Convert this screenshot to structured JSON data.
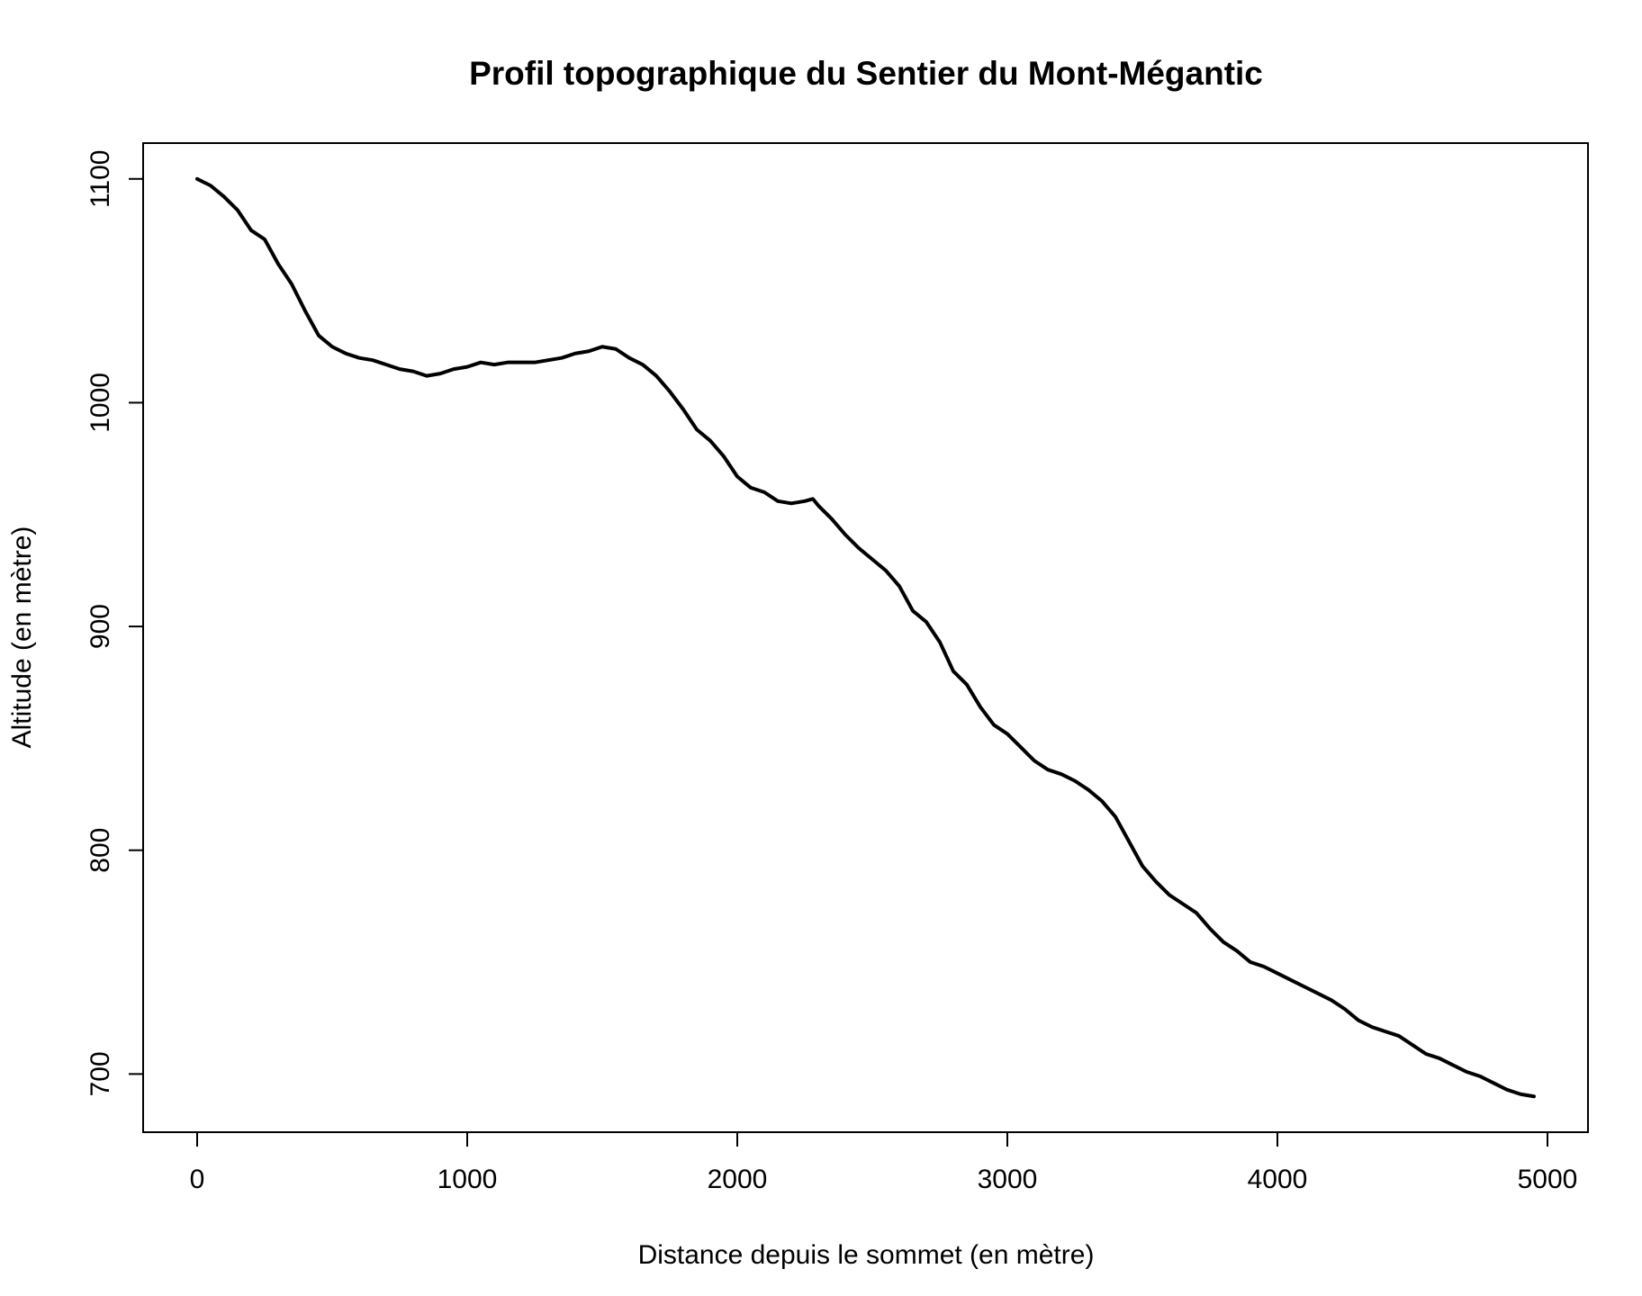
{
  "chart_data": {
    "type": "line",
    "title": "Profil topographique du Sentier du Mont-Mégantic",
    "xlabel": "Distance depuis le sommet (en mètre)",
    "ylabel": "Altitude (en mètre)",
    "xlim": [
      -200,
      5150
    ],
    "ylim": [
      674,
      1116
    ],
    "xticks": [
      0,
      1000,
      2000,
      3000,
      4000,
      5000
    ],
    "yticks": [
      700,
      800,
      900,
      1000,
      1100
    ],
    "grid": false,
    "line_color": "#000000",
    "series": [
      {
        "x": [
          0,
          50,
          100,
          150,
          200,
          250,
          300,
          350,
          400,
          450,
          500,
          550,
          600,
          650,
          700,
          750,
          800,
          850,
          900,
          950,
          1000,
          1050,
          1100,
          1150,
          1200,
          1250,
          1300,
          1350,
          1400,
          1450,
          1500,
          1550,
          1600,
          1650,
          1700,
          1750,
          1800,
          1850,
          1900,
          1950,
          2000,
          2050,
          2100,
          2150,
          2200,
          2250,
          2280,
          2300,
          2350,
          2400,
          2450,
          2500,
          2550,
          2600,
          2650,
          2700,
          2750,
          2800,
          2850,
          2900,
          2950,
          3000,
          3050,
          3100,
          3150,
          3200,
          3250,
          3300,
          3350,
          3400,
          3450,
          3500,
          3550,
          3600,
          3650,
          3700,
          3750,
          3800,
          3850,
          3900,
          3950,
          4000,
          4050,
          4100,
          4150,
          4200,
          4250,
          4300,
          4350,
          4400,
          4450,
          4500,
          4550,
          4600,
          4650,
          4700,
          4750,
          4800,
          4850,
          4900,
          4950
        ],
        "y": [
          1100,
          1097,
          1092,
          1086,
          1077,
          1073,
          1062,
          1053,
          1041,
          1030,
          1025,
          1022,
          1020,
          1019,
          1017,
          1015,
          1014,
          1012,
          1013,
          1015,
          1016,
          1018,
          1017,
          1018,
          1018,
          1018,
          1019,
          1020,
          1022,
          1023,
          1025,
          1024,
          1020,
          1017,
          1012,
          1005,
          997,
          988,
          983,
          976,
          967,
          962,
          960,
          956,
          955,
          956,
          957,
          954,
          948,
          941,
          935,
          930,
          925,
          918,
          907,
          902,
          893,
          880,
          874,
          864,
          856,
          852,
          846,
          840,
          836,
          834,
          831,
          827,
          822,
          815,
          804,
          793,
          786,
          780,
          776,
          772,
          765,
          759,
          755,
          750,
          748,
          745,
          742,
          739,
          736,
          733,
          729,
          724,
          721,
          719,
          717,
          713,
          709,
          707,
          704,
          701,
          699,
          696,
          693,
          691,
          690
        ]
      }
    ]
  }
}
